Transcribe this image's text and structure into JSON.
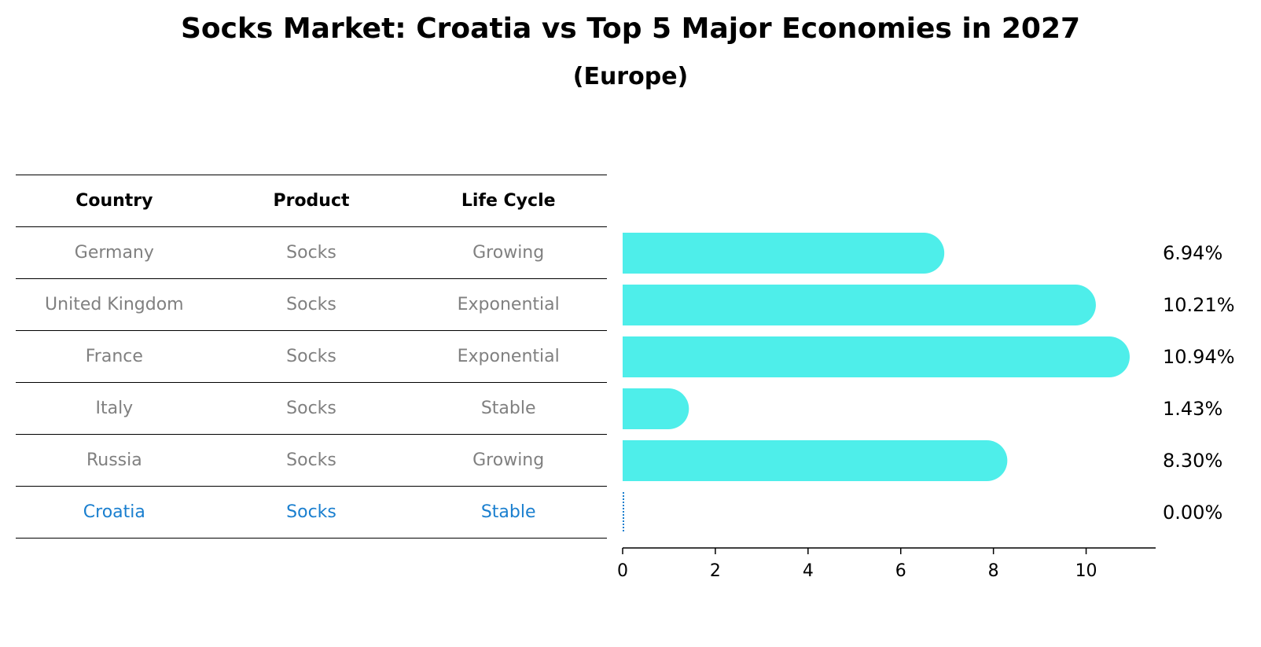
{
  "title": "Socks Market: Croatia vs Top 5 Major Economies in 2027",
  "subtitle": "(Europe)",
  "table": {
    "headers": [
      "Country",
      "Product",
      "Life Cycle"
    ],
    "rows": [
      [
        "Germany",
        "Socks",
        "Growing"
      ],
      [
        "United Kingdom",
        "Socks",
        "Exponential"
      ],
      [
        "France",
        "Socks",
        "Exponential"
      ],
      [
        "Italy",
        "Socks",
        "Stable"
      ],
      [
        "Russia",
        "Socks",
        "Growing"
      ],
      [
        "Croatia",
        "Socks",
        "Stable"
      ]
    ],
    "highlight_row": 5
  },
  "chart_data": {
    "type": "bar",
    "orientation": "horizontal",
    "categories": [
      "Germany",
      "United Kingdom",
      "France",
      "Italy",
      "Russia",
      "Croatia"
    ],
    "values": [
      6.94,
      10.21,
      10.94,
      1.43,
      8.3,
      0.0
    ],
    "value_labels": [
      "6.94%",
      "10.21%",
      "10.94%",
      "1.43%",
      "8.30%",
      "0.00%"
    ],
    "xlim": [
      0,
      11.5
    ],
    "xticks": [
      0,
      2,
      4,
      6,
      8,
      10
    ],
    "bar_color": "#4eeeea",
    "highlight_color": "#1a7fcf",
    "grid": false
  }
}
